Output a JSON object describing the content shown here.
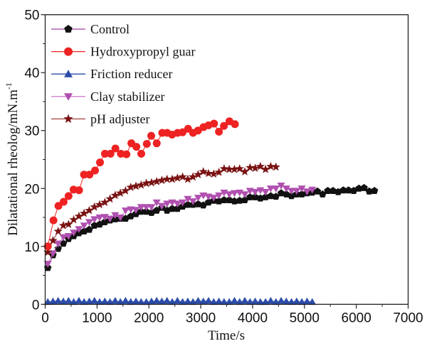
{
  "chart_data": {
    "type": "scatter",
    "xlabel": "Time/s",
    "ylabel": "Dilatational rheolog/mN.m",
    "ylabel_sup": "-1",
    "xlim": [
      0,
      7000
    ],
    "ylim": [
      0,
      50
    ],
    "xticks": [
      "0",
      "1000",
      "2000",
      "3000",
      "4000",
      "5000",
      "6000",
      "7000"
    ],
    "yticks": [
      "0",
      "10",
      "20",
      "30",
      "40",
      "50"
    ],
    "grid": false,
    "legend_position": "top-left",
    "series": [
      {
        "name": "Control",
        "marker": "pentagon",
        "color": "#111111",
        "line_color": "#a040a0",
        "x_start": 50,
        "x_step": 100,
        "values": [
          6.3,
          8.5,
          9.6,
          10.5,
          11.3,
          11.8,
          12.3,
          12.6,
          12.9,
          13.6,
          13.8,
          14.2,
          14.5,
          14.7,
          14.8,
          14.8,
          15.2,
          15.6,
          16.0,
          16.0,
          15.8,
          16.2,
          16.7,
          16.2,
          16.5,
          16.5,
          16.9,
          17.2,
          17.2,
          17.3,
          17.1,
          17.6,
          17.9,
          17.8,
          18.0,
          18.0,
          17.8,
          17.9,
          18.0,
          18.5,
          18.5,
          18.3,
          18.5,
          18.7,
          18.6,
          19.2,
          19.0,
          18.7,
          19.0,
          19.0,
          19.2,
          19.3,
          19.5,
          19.0,
          19.6,
          19.6,
          19.4,
          19.7,
          19.7,
          19.6,
          20.0,
          20.1,
          19.5,
          19.6
        ]
      },
      {
        "name": "Hydroxypropyl guar",
        "marker": "circle",
        "color": "#ee2222",
        "line_color": "#ee2222",
        "points": [
          [
            50,
            10.0
          ],
          [
            160,
            14.5
          ],
          [
            255,
            17.0
          ],
          [
            356,
            17.7
          ],
          [
            451,
            18.7
          ],
          [
            547,
            19.8
          ],
          [
            653,
            19.7
          ],
          [
            749,
            22.4
          ],
          [
            855,
            22.4
          ],
          [
            961,
            23.1
          ],
          [
            1057,
            24.5
          ],
          [
            1152,
            26.0
          ],
          [
            1259,
            26.0
          ],
          [
            1354,
            26.9
          ],
          [
            1460,
            26.0
          ],
          [
            1567,
            25.9
          ],
          [
            1662,
            27.8
          ],
          [
            1758,
            27.2
          ],
          [
            1853,
            26.0
          ],
          [
            1960,
            27.7
          ],
          [
            2045,
            29.1
          ],
          [
            2151,
            27.8
          ],
          [
            2257,
            29.6
          ],
          [
            2353,
            29.6
          ],
          [
            2448,
            29.3
          ],
          [
            2554,
            29.6
          ],
          [
            2650,
            29.7
          ],
          [
            2756,
            30.3
          ],
          [
            2852,
            29.6
          ],
          [
            2947,
            30.0
          ],
          [
            3054,
            30.6
          ],
          [
            3149,
            30.9
          ],
          [
            3256,
            31.2
          ],
          [
            3351,
            29.8
          ],
          [
            3447,
            30.8
          ],
          [
            3553,
            31.6
          ],
          [
            3659,
            31.1
          ]
        ]
      },
      {
        "name": "Friction reducer",
        "marker": "triangle-up",
        "color": "#2b4ca8",
        "line_color": "#2b4ca8",
        "x_start": 50,
        "x_step": 100,
        "values": [
          0.4,
          0.5,
          0.6,
          0.5,
          0.6,
          0.4,
          0.6,
          0.4,
          0.5,
          0.6,
          0.4,
          0.5,
          0.4,
          0.6,
          0.4,
          0.6,
          0.4,
          0.5,
          0.4,
          0.4,
          0.5,
          0.6,
          0.5,
          0.6,
          0.4,
          0.6,
          0.4,
          0.5,
          0.4,
          0.6,
          0.5,
          0.6,
          0.4,
          0.5,
          0.4,
          0.4,
          0.6,
          0.4,
          0.6,
          0.4,
          0.5,
          0.4,
          0.4,
          0.6,
          0.4,
          0.6,
          0.5,
          0.4,
          0.5,
          0.4,
          0.5,
          0.4
        ]
      },
      {
        "name": "Clay stabilizer",
        "marker": "triangle-down",
        "color": "#b050b0",
        "line_color": "#d080d0",
        "x_start": 50,
        "x_step": 100,
        "values": [
          7.0,
          8.8,
          10.5,
          11.6,
          11.8,
          12.4,
          13.0,
          13.6,
          14.2,
          14.7,
          15.0,
          15.1,
          14.8,
          15.4,
          15.0,
          16.2,
          16.4,
          16.3,
          16.8,
          16.8,
          16.8,
          17.6,
          17.0,
          17.4,
          17.6,
          17.4,
          17.6,
          18.2,
          17.8,
          18.4,
          18.8,
          18.6,
          18.4,
          18.8,
          19.3,
          19.0,
          19.2,
          19.3,
          19.0,
          19.6,
          19.4,
          19.7,
          19.4,
          20.0,
          20.0,
          20.5,
          20.0,
          19.6,
          19.6,
          20.0,
          19.5,
          19.8
        ]
      },
      {
        "name": "pH adjuster",
        "marker": "star",
        "color": "#7a1212",
        "line_color": "#a04040",
        "x_start": 50,
        "x_step": 100,
        "values": [
          9.0,
          11.0,
          12.6,
          13.6,
          13.8,
          14.6,
          15.2,
          15.7,
          16.2,
          16.8,
          17.2,
          17.6,
          18.2,
          18.8,
          19.2,
          19.6,
          20.2,
          20.4,
          20.6,
          20.9,
          21.0,
          21.2,
          21.4,
          21.6,
          21.6,
          21.8,
          22.0,
          21.6,
          22.0,
          22.4,
          22.9,
          22.6,
          22.5,
          22.8,
          23.4,
          23.3,
          23.3,
          23.4,
          22.9,
          23.6,
          23.5,
          23.8,
          23.3,
          23.8,
          23.7
        ]
      }
    ]
  }
}
